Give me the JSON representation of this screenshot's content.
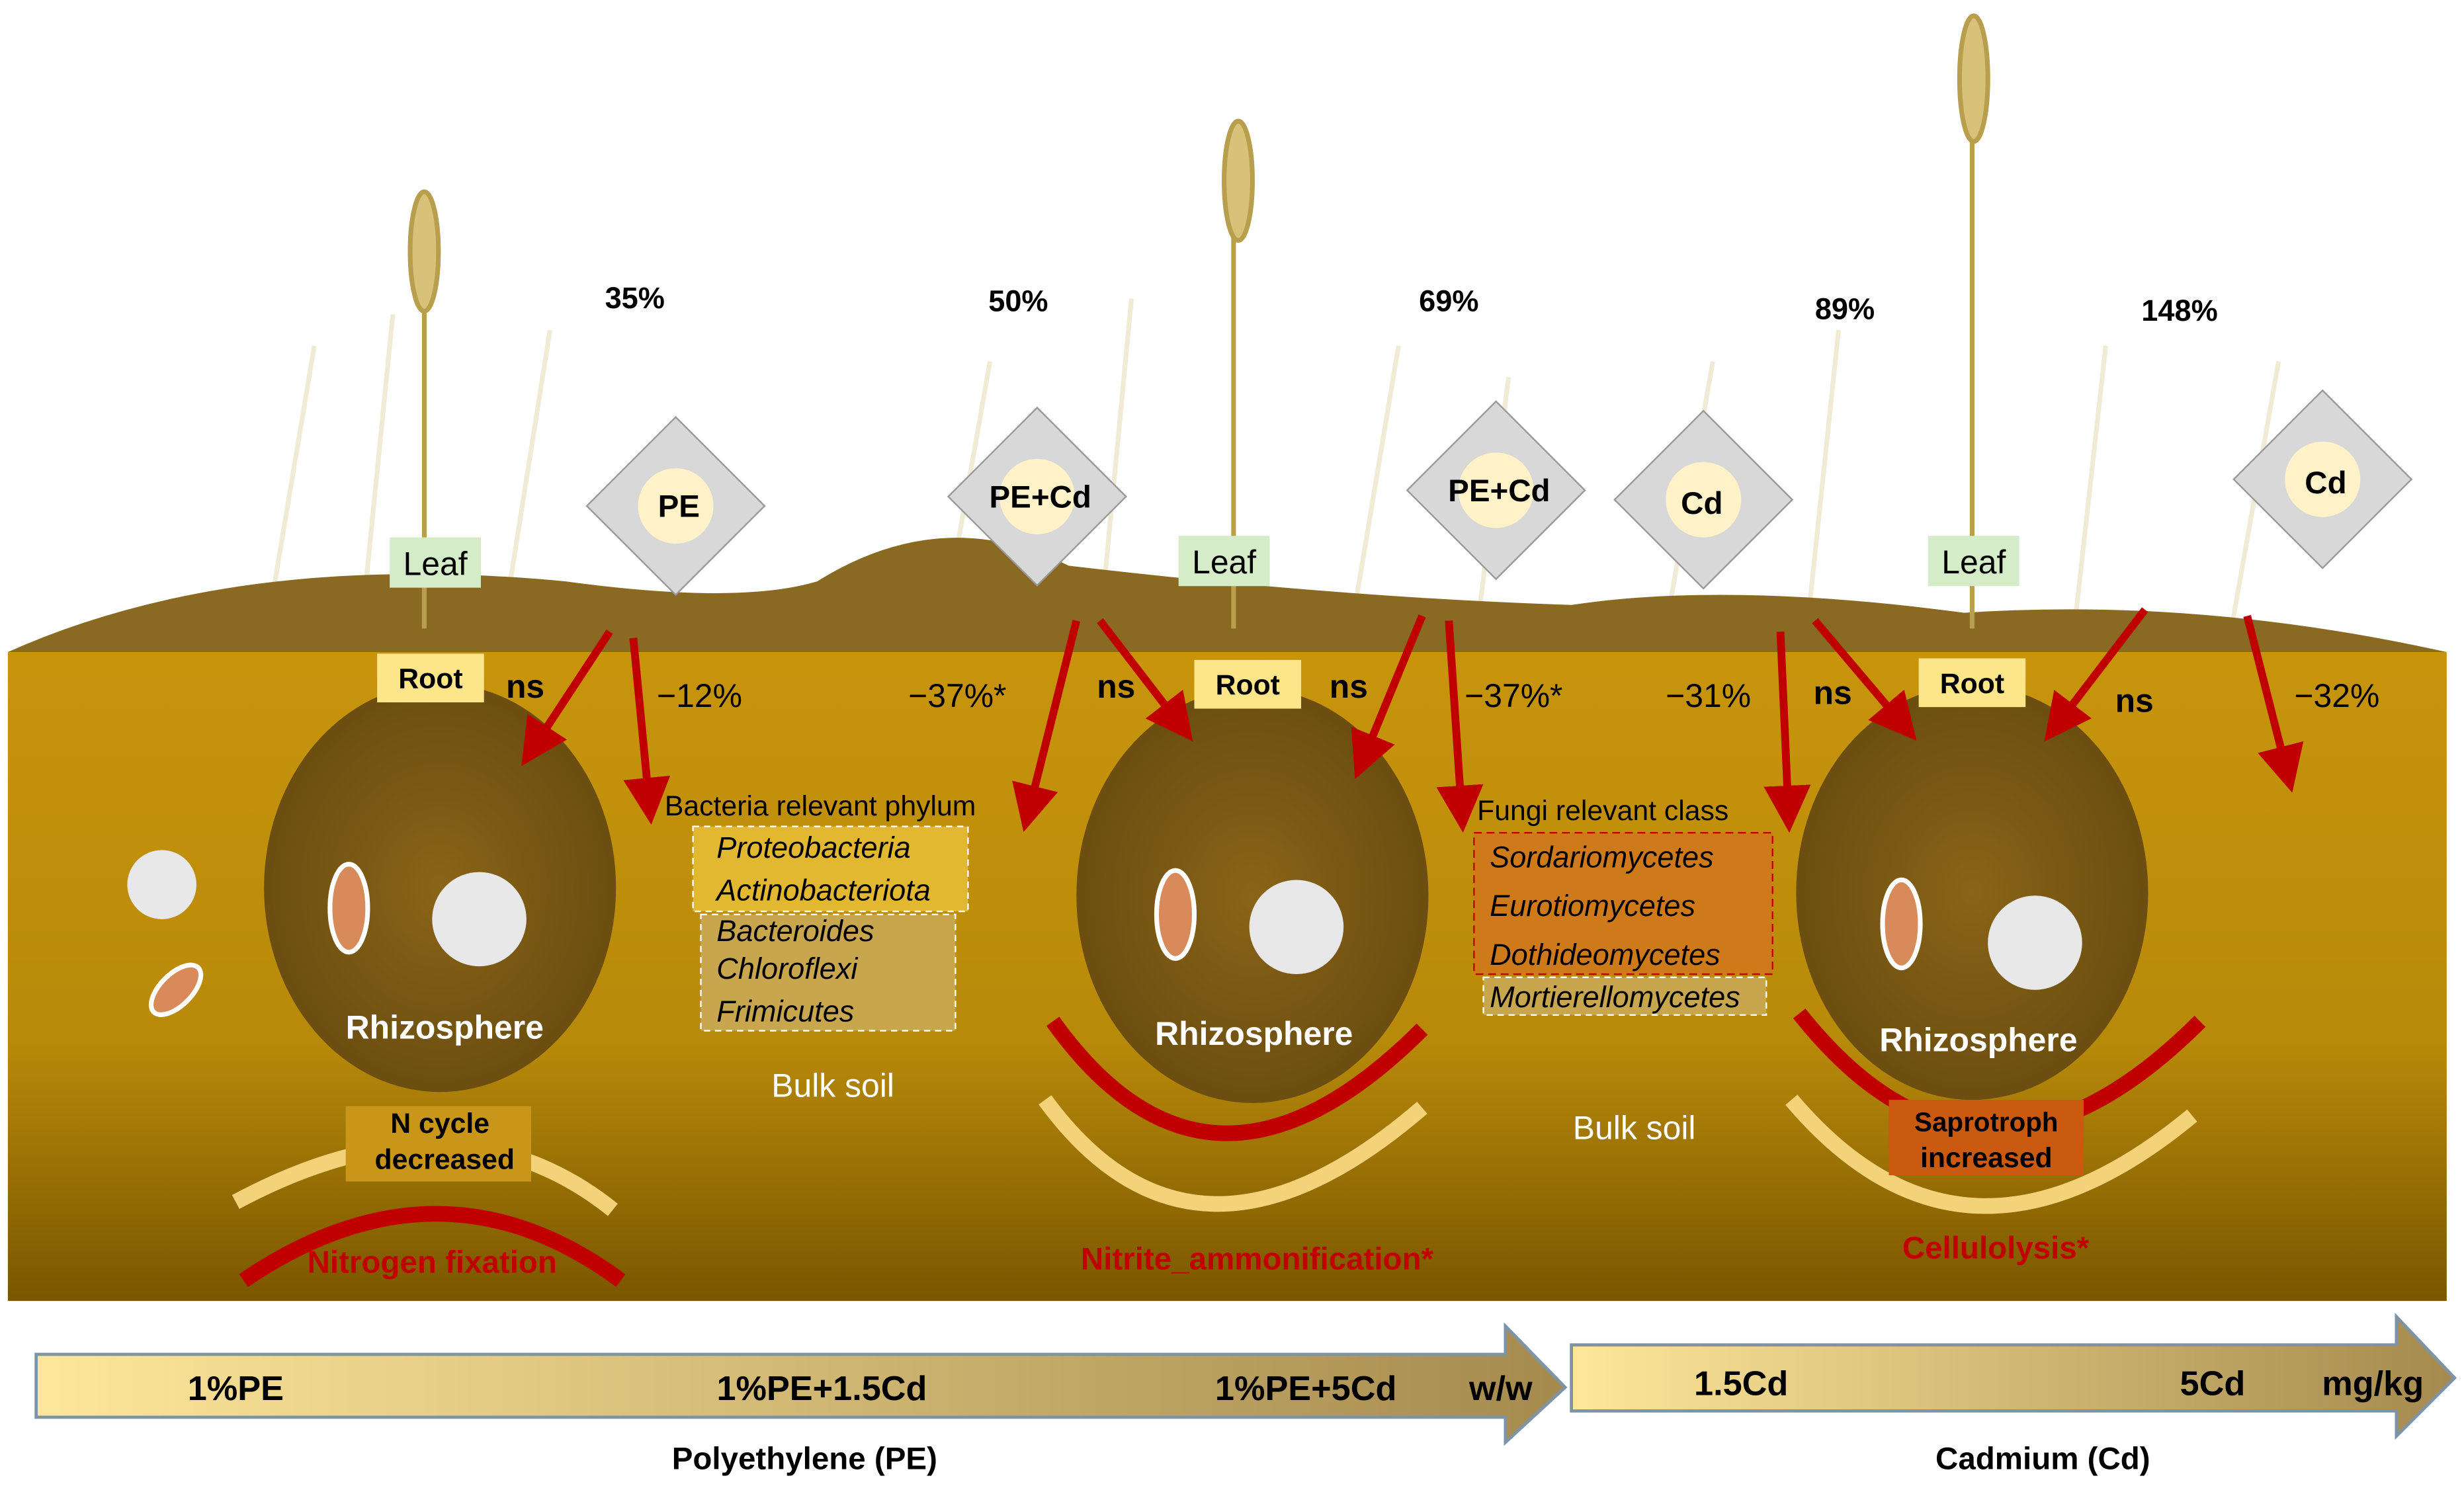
{
  "colors": {
    "soil": "#b98a0c",
    "soil_dark": "#7a5800",
    "hill": "#8a6a22",
    "arrow_red": "#c00000",
    "rhizo": "#7c5b15",
    "label_yellow": "#fde58a",
    "leaf_green": "#d5ecc8"
  },
  "top_percents": [
    "35%",
    "50%",
    "69%",
    "89%",
    "148%"
  ],
  "pollutants": [
    "PE",
    "PE+Cd",
    "PE+Cd",
    "Cd",
    "Cd"
  ],
  "leaf_label": "Leaf",
  "root_label": "Root",
  "rhizosphere_label": "Rhizosphere",
  "bulk_soil_label": "Bulk soil",
  "soil_effects": [
    "ns",
    "−12%",
    "−37%*",
    "ns",
    "ns",
    "−37%*",
    "−31%",
    "ns",
    "ns",
    "−32%"
  ],
  "bacteria": {
    "title": "Bacteria relevant phylum",
    "items": [
      "Proteobacteria",
      "Actinobacteriota",
      "Bacteroides",
      "Chloroflexi",
      "Frimicutes"
    ]
  },
  "fungi": {
    "title": "Fungi relevant class",
    "items": [
      "Sordariomycetes",
      "Eurotiomycetes",
      "Dothideomycetes",
      "Mortierellomycetes"
    ]
  },
  "panels": [
    {
      "box_line1": "N cycle",
      "box_line2": "decreased",
      "function": "Nitrogen fixation"
    },
    {
      "function": "Nitrite_ammonification*"
    },
    {
      "box_line1": "Saprotroph",
      "box_line2": "increased",
      "function": "Cellulolysis*"
    }
  ],
  "pe_axis": {
    "ticks": [
      "1%PE",
      "1%PE+1.5Cd",
      "1%PE+5Cd"
    ],
    "unit": "w/w",
    "title": "Polyethylene (PE)"
  },
  "cd_axis": {
    "ticks": [
      "1.5Cd",
      "5Cd"
    ],
    "unit": "mg/kg",
    "title": "Cadmium (Cd)"
  }
}
